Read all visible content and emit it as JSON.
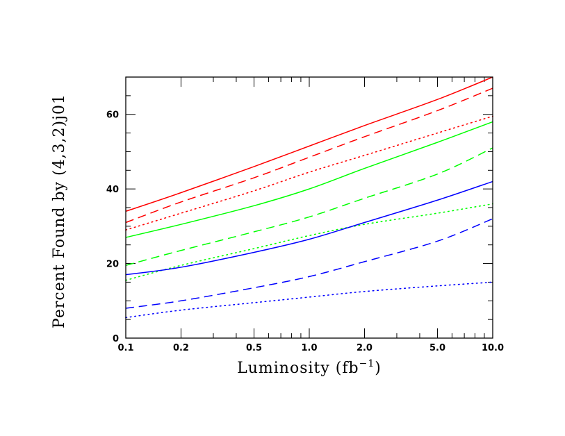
{
  "chart_data": {
    "type": "line",
    "title": "",
    "xlabel": "Luminosity (fb",
    "xlabel_sup": "−1",
    "xlabel_close": ")",
    "ylabel": "Percent Found by (4,3,2)j01",
    "xscale": "log",
    "xlim": [
      0.1,
      10.0
    ],
    "ylim": [
      0,
      70
    ],
    "x_ticks": [
      {
        "value": 0.1,
        "label": "0.1"
      },
      {
        "value": 0.2,
        "label": "0.2"
      },
      {
        "value": 0.5,
        "label": "0.5"
      },
      {
        "value": 1.0,
        "label": "1.0"
      },
      {
        "value": 2.0,
        "label": "2.0"
      },
      {
        "value": 5.0,
        "label": "5.0"
      },
      {
        "value": 10.0,
        "label": "10.0"
      }
    ],
    "y_ticks": [
      {
        "value": 0,
        "label": "0"
      },
      {
        "value": 20,
        "label": "20"
      },
      {
        "value": 40,
        "label": "40"
      },
      {
        "value": 60,
        "label": "60"
      }
    ],
    "grid": false,
    "legend": "none",
    "x": [
      0.1,
      0.2,
      0.5,
      1.0,
      2.0,
      5.0,
      10.0
    ],
    "series": [
      {
        "color": "#ff0000",
        "style": "solid",
        "values": [
          34,
          39,
          46,
          51.5,
          57,
          64,
          70
        ]
      },
      {
        "color": "#ff0000",
        "style": "dashed",
        "values": [
          31,
          36.5,
          43,
          48.5,
          54,
          61,
          67
        ]
      },
      {
        "color": "#ff0000",
        "style": "dotted",
        "values": [
          29,
          33.5,
          39.5,
          44.5,
          49,
          55,
          59.5
        ]
      },
      {
        "color": "#00ff00",
        "style": "solid",
        "values": [
          27,
          30.5,
          35.5,
          40,
          45.5,
          52.5,
          58
        ]
      },
      {
        "color": "#00ff00",
        "style": "dashed",
        "values": [
          19.5,
          23.5,
          28.5,
          32.5,
          37.5,
          44,
          51
        ]
      },
      {
        "color": "#00ff00",
        "style": "dotted",
        "values": [
          15.5,
          19.5,
          24,
          27.5,
          30.5,
          33.5,
          36
        ]
      },
      {
        "color": "#0000ff",
        "style": "solid",
        "values": [
          17,
          19,
          23,
          26.5,
          31,
          37,
          42
        ]
      },
      {
        "color": "#0000ff",
        "style": "dashed",
        "values": [
          8,
          10,
          13.5,
          16.5,
          20.5,
          26,
          32
        ]
      },
      {
        "color": "#0000ff",
        "style": "dotted",
        "values": [
          5.5,
          7.5,
          9.5,
          11,
          12.5,
          14,
          15
        ]
      }
    ]
  }
}
